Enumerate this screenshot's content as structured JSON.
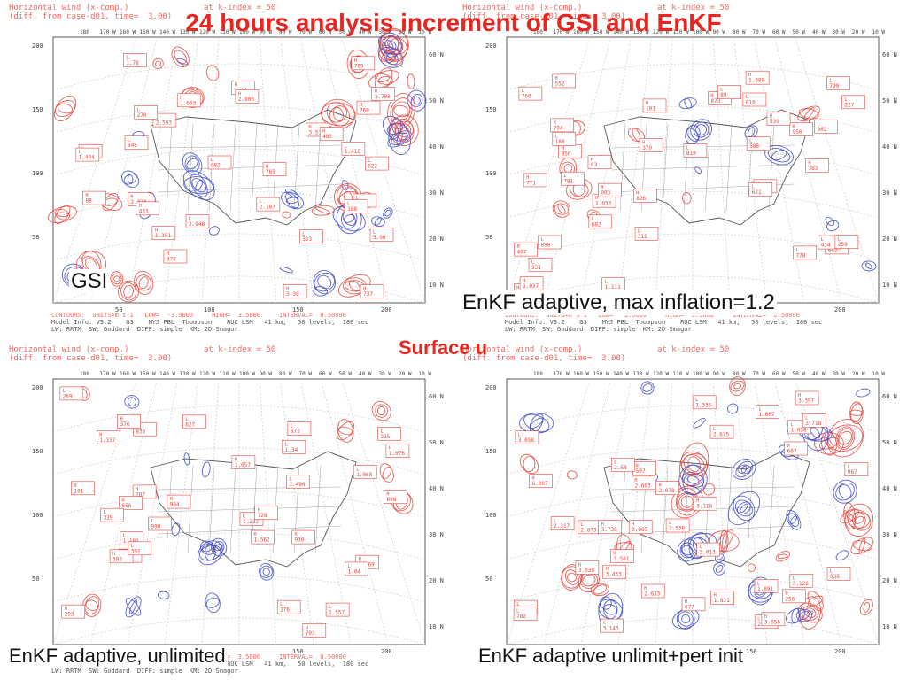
{
  "slide": {
    "title": "24 hours analysis increment of GSI and EnKF",
    "center_label": "Surface u"
  },
  "colors": {
    "positive": "#e8453c",
    "negative": "#3a46c8",
    "title": "#e8251f",
    "map": "#555555"
  },
  "plot_header": {
    "line1": "Horizontal wind (x-comp.)",
    "line2": "(diff. from case-d01, time=  3.00)",
    "level": "at k-index = 50"
  },
  "plot_footer": {
    "contours": "CONTOURS:  UNITS=m s-1   LOW=  -3.5000     HIGH=  3.5000     INTERVAL=  0.50000",
    "model": "Model Info: V3.2    G3    MYJ PBL  Thompson    RUC LSM   41 km,   50 levels,  180 sec",
    "physics": "LW: RRTM  SW: Goddard  DIFF: simple  KM: 2D Smagor"
  },
  "axes": {
    "y_ticks": [
      "200",
      "150",
      "100",
      "50"
    ],
    "x_ticks": [
      "50",
      "100",
      "150",
      "200"
    ],
    "lon_ticks": [
      "180",
      "170 W",
      "160 W",
      "150 W",
      "140 W",
      "130 W",
      "120 W",
      "110 W",
      "100 W",
      "90 W",
      "80 W",
      "70 W",
      "60 W",
      "50 W",
      "40 W",
      "30 W",
      "20 W",
      "10 W"
    ],
    "lat_ticks": [
      "60 N",
      "50 N",
      "40 N",
      "30 N",
      "20 N",
      "10 N"
    ]
  },
  "panels": [
    {
      "id": "gsi",
      "caption": "GSI",
      "level": "high",
      "labels": [
        "1.663",
        "1.642",
        "2.323",
        "1.416",
        "765",
        "3.96",
        "1.38",
        "1.78",
        "3.708",
        "2.593",
        "2.906",
        "2.948",
        "3.518",
        "1.444",
        "1.351",
        "345",
        "870",
        "082",
        "3.39",
        "2.187",
        "769",
        "909",
        "737",
        "270",
        "760",
        "323",
        "433",
        "022",
        "483",
        "188",
        "88"
      ]
    },
    {
      "id": "enkf-max12",
      "caption": "EnKF adaptive, max inflation=1.2",
      "level": "low",
      "labels": [
        "561",
        "898",
        "850",
        "799",
        "1.389",
        "778",
        "826",
        "931",
        "407",
        "610",
        "794",
        "781",
        "682",
        "588",
        "1.033",
        "819",
        "83",
        "621",
        "552",
        "1.111",
        "873",
        "962",
        "771",
        "188",
        "379",
        "682",
        "950",
        "434",
        "839",
        "89",
        "383",
        "227",
        "743",
        "259",
        "101",
        "316",
        "003",
        "760",
        "1.037"
      ]
    },
    {
      "id": "enkf-unlimited",
      "caption": "EnKF adaptive, unlimited",
      "level": "low",
      "labels": [
        "707",
        "1.34",
        "984",
        "990",
        "1.562",
        "1.496",
        "703",
        "627",
        "1.076",
        "1.232",
        "836",
        "1.068",
        "898",
        "1.181",
        "728",
        "1.557",
        "1.337",
        "269",
        "1.469",
        "215",
        "1.057",
        "276",
        "656",
        "390",
        "386",
        "329",
        "293",
        "1.04",
        "101",
        "391",
        "930",
        "872",
        "376"
      ]
    },
    {
      "id": "enkf-unlimit-pert",
      "caption": "EnKF adaptive unlimit+pert init",
      "level": "high",
      "labels": [
        "2.833",
        "2.995",
        "3.656",
        "3.126",
        "1.821",
        "2.538",
        "3.433",
        "1.058",
        "2.078",
        "1.891",
        "3.143",
        "3.058",
        "3.118",
        "3.718",
        "2.603",
        "2.659",
        "3.397",
        "2.873",
        "3.738",
        "3.013",
        "3.039",
        "1.335",
        "256",
        "1.607",
        "3.865",
        "2.675",
        "507",
        "087",
        "3.581",
        "2.317",
        "677",
        "782",
        "607",
        "038",
        "6.097",
        "2.58"
      ]
    }
  ]
}
